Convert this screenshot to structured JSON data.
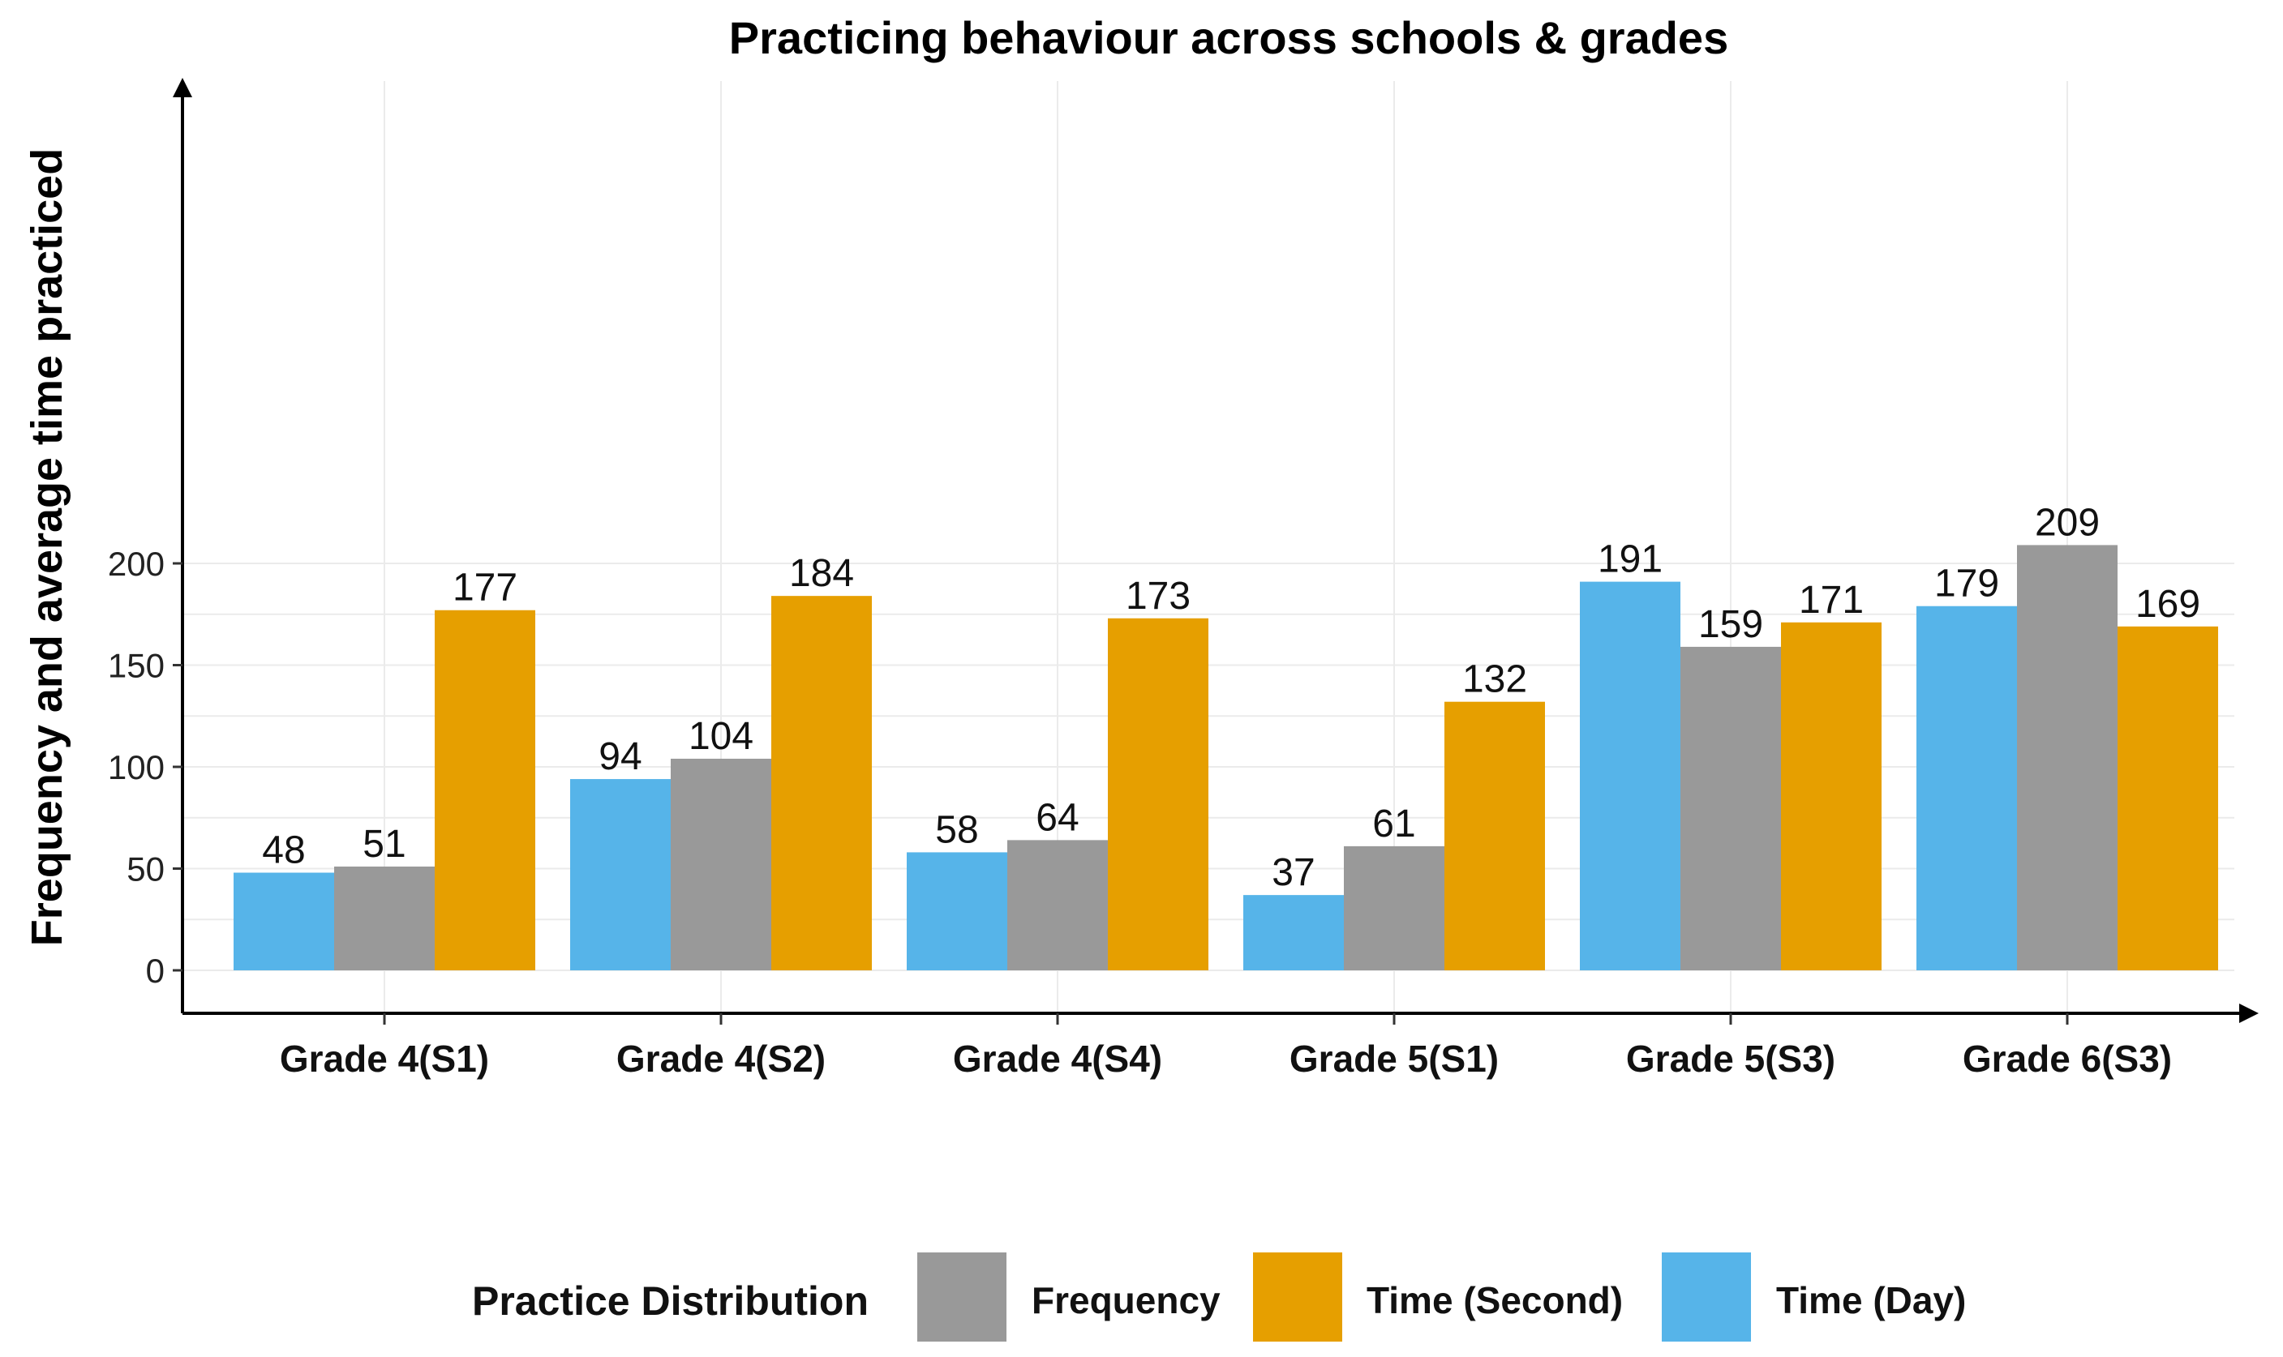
{
  "chart_data": {
    "type": "bar",
    "title": "Practicing behaviour across schools & grades",
    "xlabel": "",
    "ylabel": "Frequency and average time practiced",
    "ylim": [
      0,
      218
    ],
    "yticks": [
      0,
      50,
      100,
      150,
      200
    ],
    "grid": true,
    "legend_position": "bottom",
    "legend_title": "Practice Distribution",
    "categories": [
      "Grade 4(S1)",
      "Grade 4(S2)",
      "Grade 4(S4)",
      "Grade 5(S1)",
      "Grade 5(S3)",
      "Grade 6(S3)"
    ],
    "series": [
      {
        "name": "Time (Day)",
        "color": "#56B4E9",
        "values": [
          48,
          94,
          58,
          37,
          191,
          179
        ]
      },
      {
        "name": "Frequency",
        "color": "#999999",
        "values": [
          51,
          104,
          64,
          61,
          159,
          209
        ]
      },
      {
        "name": "Time (Second)",
        "color": "#E69F00",
        "values": [
          177,
          184,
          173,
          132,
          171,
          169
        ]
      }
    ],
    "legend_order": [
      "Frequency",
      "Time (Second)",
      "Time (Day)"
    ]
  }
}
